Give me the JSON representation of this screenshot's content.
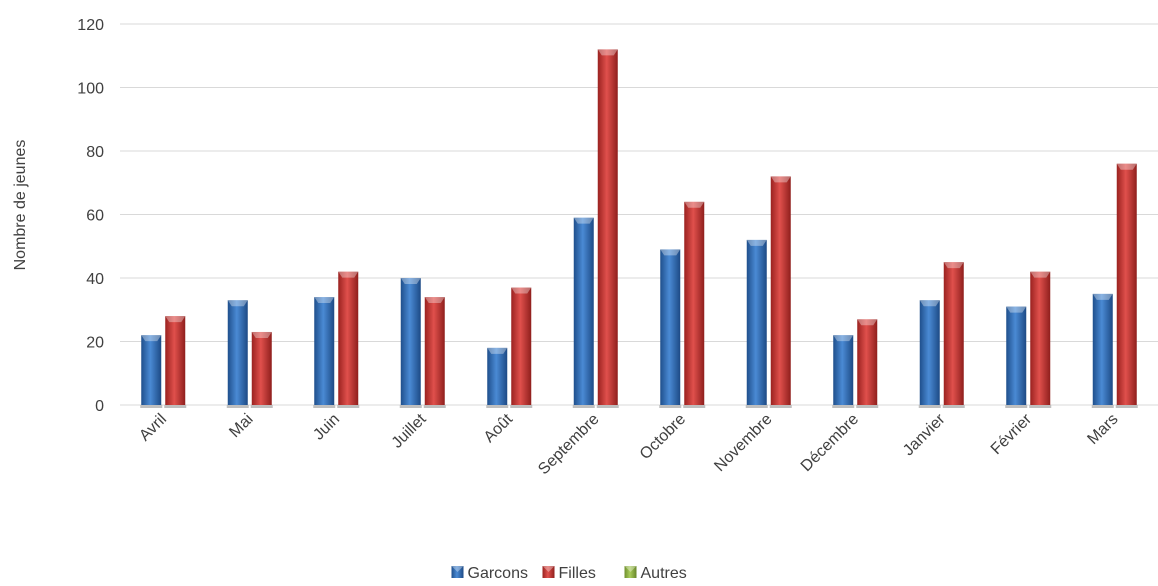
{
  "chart_data": {
    "type": "bar",
    "title": "",
    "xlabel": "",
    "ylabel": "Nombre de jeunes",
    "ylim": [
      0,
      120
    ],
    "yticks": [
      0,
      20,
      40,
      60,
      80,
      100,
      120
    ],
    "grid": true,
    "legend_position": "bottom",
    "categories": [
      "Avril",
      "Mai",
      "Juin",
      "Juillet",
      "Août",
      "Septembre",
      "Octobre",
      "Novembre",
      "Décembre",
      "Janvier",
      "Février",
      "Mars"
    ],
    "series": [
      {
        "name": "Garcons",
        "color": "#2e6ab3",
        "values": [
          22,
          33,
          34,
          40,
          18,
          59,
          49,
          52,
          22,
          33,
          31,
          35
        ]
      },
      {
        "name": "Filles",
        "color": "#c0302e",
        "values": [
          28,
          23,
          42,
          34,
          37,
          112,
          64,
          72,
          27,
          45,
          42,
          76
        ]
      },
      {
        "name": "Autres",
        "color": "#8fb540",
        "values": [
          0,
          0,
          0,
          0,
          0,
          0,
          0,
          0,
          0,
          0,
          0,
          0
        ]
      }
    ]
  }
}
